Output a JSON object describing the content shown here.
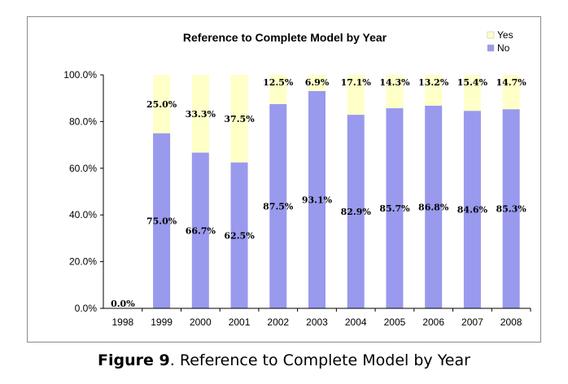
{
  "figure_caption": {
    "label": "Figure 9",
    "text": ". Reference to Complete Model by Year"
  },
  "chart_data": {
    "type": "bar",
    "stacked": true,
    "title": "Reference to Complete Model by Year",
    "xlabel": "",
    "ylabel": "",
    "categories": [
      "1998",
      "1999",
      "2000",
      "2001",
      "2002",
      "2003",
      "2004",
      "2005",
      "2006",
      "2007",
      "2008"
    ],
    "series": [
      {
        "name": "No",
        "color": "#9999ee",
        "values": [
          0.0,
          75.0,
          66.7,
          62.5,
          87.5,
          93.1,
          82.9,
          85.7,
          86.8,
          84.6,
          85.3
        ],
        "labels": [
          "0.0%",
          "75.0%",
          "66.7%",
          "62.5%",
          "87.5%",
          "93.1%",
          "82.9%",
          "85.7%",
          "86.8%",
          "84.6%",
          "85.3%"
        ]
      },
      {
        "name": "Yes",
        "color": "#ffffc8",
        "values": [
          0.0,
          25.0,
          33.3,
          37.5,
          12.5,
          6.9,
          17.1,
          14.3,
          13.2,
          15.4,
          14.7
        ],
        "labels": [
          "",
          "25.0%",
          "33.3%",
          "37.5%",
          "12.5%",
          "6.9%",
          "17.1%",
          "14.3%",
          "13.2%",
          "15.4%",
          "14.7%"
        ]
      }
    ],
    "ylim": [
      0,
      100
    ],
    "yticks": [
      "0.0%",
      "20.0%",
      "40.0%",
      "60.0%",
      "80.0%",
      "100.0%"
    ],
    "legend": {
      "position": "top-right",
      "order": [
        "Yes",
        "No"
      ]
    },
    "grid": false
  }
}
